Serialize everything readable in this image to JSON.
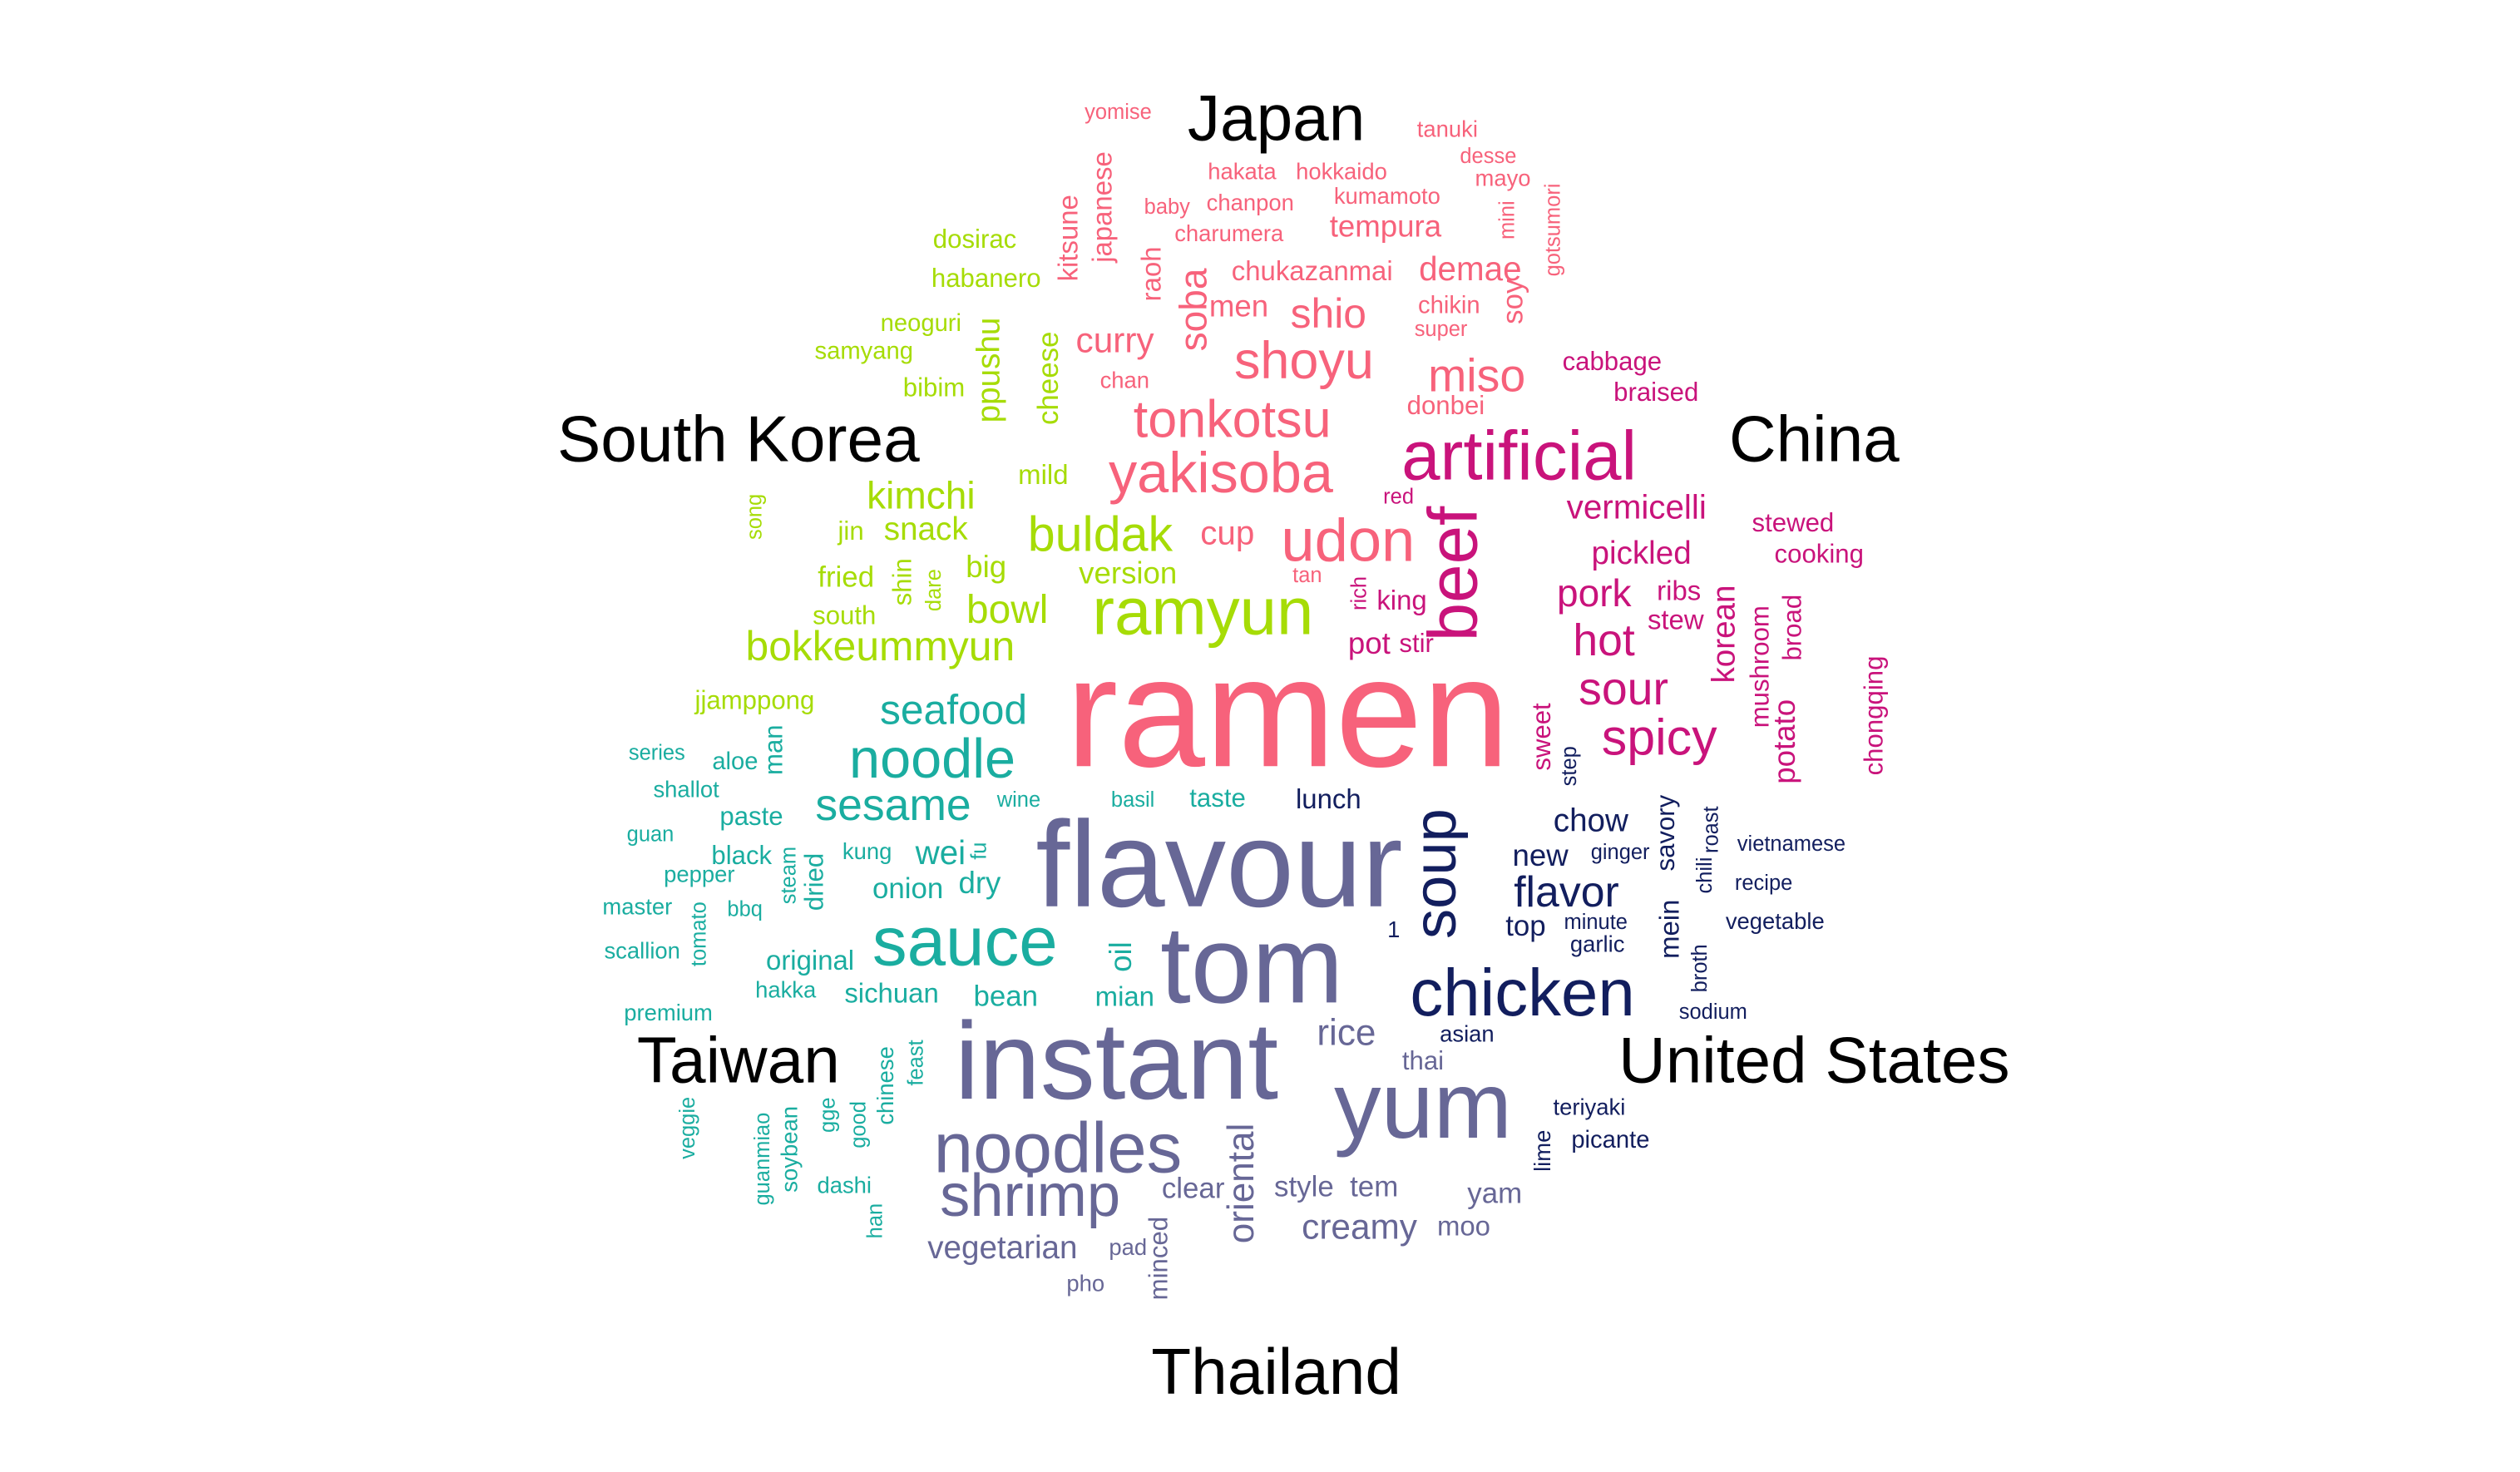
{
  "chart_data": {
    "type": "comparison-wordcloud",
    "title": "",
    "colors": {
      "Japan": "#f7627b",
      "China": "#c9137b",
      "South Korea": "#a6dc06",
      "Taiwan": "#1aada0",
      "Thailand": "#676796",
      "United States": "#121e5e",
      "label": "#000000"
    },
    "groups": [
      "Japan",
      "China",
      "United States",
      "Thailand",
      "Taiwan",
      "South Korea"
    ],
    "words": [
      {
        "text": "ramen",
        "group": "Japan",
        "weight": 100
      },
      {
        "text": "artificial",
        "group": "China",
        "weight": 44
      },
      {
        "text": "yakisoba",
        "group": "Japan",
        "weight": 36
      },
      {
        "text": "tonkotsu",
        "group": "Japan",
        "weight": 33
      },
      {
        "text": "udon",
        "group": "Japan",
        "weight": 38
      },
      {
        "text": "shoyu",
        "group": "Japan",
        "weight": 33
      },
      {
        "text": "miso",
        "group": "Japan",
        "weight": 29
      },
      {
        "text": "curry",
        "group": "Japan",
        "weight": 22
      },
      {
        "text": "shio",
        "group": "Japan",
        "weight": 26
      },
      {
        "text": "soba",
        "group": "Japan",
        "weight": 24
      },
      {
        "text": "tempura",
        "group": "Japan",
        "weight": 19
      },
      {
        "text": "demae",
        "group": "Japan",
        "weight": 21
      },
      {
        "text": "chukazanmai",
        "group": "Japan",
        "weight": 17
      },
      {
        "text": "men",
        "group": "Japan",
        "weight": 19
      },
      {
        "text": "cup",
        "group": "Japan",
        "weight": 21
      },
      {
        "text": "chikin",
        "group": "Japan",
        "weight": 15
      },
      {
        "text": "soy",
        "group": "Japan",
        "weight": 18
      },
      {
        "text": "chan",
        "group": "Japan",
        "weight": 14
      },
      {
        "text": "donbei",
        "group": "Japan",
        "weight": 16
      },
      {
        "text": "super",
        "group": "Japan",
        "weight": 13
      },
      {
        "text": "raoh",
        "group": "Japan",
        "weight": 17
      },
      {
        "text": "kitsune",
        "group": "Japan",
        "weight": 17
      },
      {
        "text": "japanese",
        "group": "Japan",
        "weight": 17
      },
      {
        "text": "yomise",
        "group": "Japan",
        "weight": 13
      },
      {
        "text": "tanuki",
        "group": "Japan",
        "weight": 14
      },
      {
        "text": "desse",
        "group": "Japan",
        "weight": 13
      },
      {
        "text": "hakata",
        "group": "Japan",
        "weight": 14
      },
      {
        "text": "hokkaido",
        "group": "Japan",
        "weight": 14
      },
      {
        "text": "mayo",
        "group": "Japan",
        "weight": 14
      },
      {
        "text": "baby",
        "group": "Japan",
        "weight": 13
      },
      {
        "text": "chanpon",
        "group": "Japan",
        "weight": 14
      },
      {
        "text": "kumamoto",
        "group": "Japan",
        "weight": 14
      },
      {
        "text": "mini",
        "group": "Japan",
        "weight": 13
      },
      {
        "text": "gotsumori",
        "group": "Japan",
        "weight": 13
      },
      {
        "text": "charumera",
        "group": "Japan",
        "weight": 14
      },
      {
        "text": "red",
        "group": "China",
        "weight": 13
      },
      {
        "text": "tan",
        "group": "Japan",
        "weight": 13
      },
      {
        "text": "rich",
        "group": "China",
        "weight": 13
      },
      {
        "text": "beef",
        "group": "China",
        "weight": 44
      },
      {
        "text": "vermicelli",
        "group": "China",
        "weight": 21
      },
      {
        "text": "pickled",
        "group": "China",
        "weight": 20
      },
      {
        "text": "pork",
        "group": "China",
        "weight": 24
      },
      {
        "text": "hot",
        "group": "China",
        "weight": 28
      },
      {
        "text": "sour",
        "group": "China",
        "weight": 29
      },
      {
        "text": "spicy",
        "group": "China",
        "weight": 32
      },
      {
        "text": "ribs",
        "group": "China",
        "weight": 17
      },
      {
        "text": "stew",
        "group": "China",
        "weight": 17
      },
      {
        "text": "korean",
        "group": "China",
        "weight": 20
      },
      {
        "text": "mushroom",
        "group": "China",
        "weight": 16
      },
      {
        "text": "potato",
        "group": "China",
        "weight": 19
      },
      {
        "text": "broad",
        "group": "China",
        "weight": 16
      },
      {
        "text": "chongqing",
        "group": "China",
        "weight": 16
      },
      {
        "text": "stewed",
        "group": "China",
        "weight": 16
      },
      {
        "text": "cooking",
        "group": "China",
        "weight": 16
      },
      {
        "text": "cabbage",
        "group": "China",
        "weight": 16
      },
      {
        "text": "braised",
        "group": "China",
        "weight": 16
      },
      {
        "text": "sweet",
        "group": "China",
        "weight": 16
      },
      {
        "text": "king",
        "group": "China",
        "weight": 17
      },
      {
        "text": "pot",
        "group": "China",
        "weight": 19
      },
      {
        "text": "stir",
        "group": "China",
        "weight": 16
      },
      {
        "text": "ramyun",
        "group": "South Korea",
        "weight": 42
      },
      {
        "text": "buldak",
        "group": "South Korea",
        "weight": 31
      },
      {
        "text": "kimchi",
        "group": "South Korea",
        "weight": 24
      },
      {
        "text": "snack",
        "group": "South Korea",
        "weight": 20
      },
      {
        "text": "bowl",
        "group": "South Korea",
        "weight": 25
      },
      {
        "text": "bokkeummyun",
        "group": "South Korea",
        "weight": 26
      },
      {
        "text": "version",
        "group": "South Korea",
        "weight": 19
      },
      {
        "text": "big",
        "group": "South Korea",
        "weight": 19
      },
      {
        "text": "mild",
        "group": "South Korea",
        "weight": 17
      },
      {
        "text": "fried",
        "group": "South Korea",
        "weight": 18
      },
      {
        "text": "jin",
        "group": "South Korea",
        "weight": 16
      },
      {
        "text": "south",
        "group": "South Korea",
        "weight": 16
      },
      {
        "text": "shin",
        "group": "South Korea",
        "weight": 16
      },
      {
        "text": "dare",
        "group": "South Korea",
        "weight": 13
      },
      {
        "text": "song",
        "group": "South Korea",
        "weight": 13
      },
      {
        "text": "cheese",
        "group": "South Korea",
        "weight": 18
      },
      {
        "text": "ppushu",
        "group": "South Korea",
        "weight": 20
      },
      {
        "text": "bibim",
        "group": "South Korea",
        "weight": 16
      },
      {
        "text": "samyang",
        "group": "South Korea",
        "weight": 15
      },
      {
        "text": "neoguri",
        "group": "South Korea",
        "weight": 15
      },
      {
        "text": "habanero",
        "group": "South Korea",
        "weight": 16
      },
      {
        "text": "dosirac",
        "group": "South Korea",
        "weight": 16
      },
      {
        "text": "jjamppong",
        "group": "South Korea",
        "weight": 16
      },
      {
        "text": "seafood",
        "group": "Taiwan",
        "weight": 26
      },
      {
        "text": "noodle",
        "group": "Taiwan",
        "weight": 35
      },
      {
        "text": "sesame",
        "group": "Taiwan",
        "weight": 28
      },
      {
        "text": "sauce",
        "group": "Taiwan",
        "weight": 44
      },
      {
        "text": "wei",
        "group": "Taiwan",
        "weight": 21
      },
      {
        "text": "fu",
        "group": "Taiwan",
        "weight": 13
      },
      {
        "text": "dry",
        "group": "Taiwan",
        "weight": 19
      },
      {
        "text": "onion",
        "group": "Taiwan",
        "weight": 18
      },
      {
        "text": "kung",
        "group": "Taiwan",
        "weight": 14
      },
      {
        "text": "dried",
        "group": "Taiwan",
        "weight": 16
      },
      {
        "text": "steam",
        "group": "Taiwan",
        "weight": 13
      },
      {
        "text": "black",
        "group": "Taiwan",
        "weight": 16
      },
      {
        "text": "paste",
        "group": "Taiwan",
        "weight": 16
      },
      {
        "text": "wine",
        "group": "Taiwan",
        "weight": 13
      },
      {
        "text": "aloe",
        "group": "Taiwan",
        "weight": 15
      },
      {
        "text": "man",
        "group": "Taiwan",
        "weight": 16
      },
      {
        "text": "series",
        "group": "Taiwan",
        "weight": 13
      },
      {
        "text": "shallot",
        "group": "Taiwan",
        "weight": 14
      },
      {
        "text": "guan",
        "group": "Taiwan",
        "weight": 13
      },
      {
        "text": "pepper",
        "group": "Taiwan",
        "weight": 14
      },
      {
        "text": "master",
        "group": "Taiwan",
        "weight": 14
      },
      {
        "text": "bbq",
        "group": "Taiwan",
        "weight": 13
      },
      {
        "text": "tomato",
        "group": "Taiwan",
        "weight": 13
      },
      {
        "text": "scallion",
        "group": "Taiwan",
        "weight": 14
      },
      {
        "text": "premium",
        "group": "Taiwan",
        "weight": 14
      },
      {
        "text": "original",
        "group": "Taiwan",
        "weight": 17
      },
      {
        "text": "oil",
        "group": "Taiwan",
        "weight": 19
      },
      {
        "text": "hakka",
        "group": "Taiwan",
        "weight": 14
      },
      {
        "text": "sichuan",
        "group": "Taiwan",
        "weight": 17
      },
      {
        "text": "bean",
        "group": "Taiwan",
        "weight": 18
      },
      {
        "text": "mian",
        "group": "Taiwan",
        "weight": 17
      },
      {
        "text": "chinese",
        "group": "Taiwan",
        "weight": 14
      },
      {
        "text": "feast",
        "group": "Taiwan",
        "weight": 13
      },
      {
        "text": "veggie",
        "group": "Taiwan",
        "weight": 13
      },
      {
        "text": "guanmiao",
        "group": "Taiwan",
        "weight": 13
      },
      {
        "text": "soybean",
        "group": "Taiwan",
        "weight": 14
      },
      {
        "text": "gge",
        "group": "Taiwan",
        "weight": 13
      },
      {
        "text": "good",
        "group": "Taiwan",
        "weight": 13
      },
      {
        "text": "dashi",
        "group": "Taiwan",
        "weight": 14
      },
      {
        "text": "han",
        "group": "Taiwan",
        "weight": 13
      },
      {
        "text": "flavour",
        "group": "Thailand",
        "weight": 78
      },
      {
        "text": "tom",
        "group": "Thailand",
        "weight": 70
      },
      {
        "text": "instant",
        "group": "Thailand",
        "weight": 70
      },
      {
        "text": "yum",
        "group": "Thailand",
        "weight": 60
      },
      {
        "text": "noodles",
        "group": "Thailand",
        "weight": 45
      },
      {
        "text": "shrimp",
        "group": "Thailand",
        "weight": 38
      },
      {
        "text": "rice",
        "group": "Thailand",
        "weight": 23
      },
      {
        "text": "thai",
        "group": "Thailand",
        "weight": 16
      },
      {
        "text": "oriental",
        "group": "Thailand",
        "weight": 23
      },
      {
        "text": "clear",
        "group": "Thailand",
        "weight": 18
      },
      {
        "text": "style",
        "group": "Thailand",
        "weight": 18
      },
      {
        "text": "tem",
        "group": "Thailand",
        "weight": 18
      },
      {
        "text": "creamy",
        "group": "Thailand",
        "weight": 22
      },
      {
        "text": "moo",
        "group": "Thailand",
        "weight": 17
      },
      {
        "text": "yam",
        "group": "Thailand",
        "weight": 18
      },
      {
        "text": "vegetarian",
        "group": "Thailand",
        "weight": 20
      },
      {
        "text": "pad",
        "group": "Thailand",
        "weight": 14
      },
      {
        "text": "minced",
        "group": "Thailand",
        "weight": 16
      },
      {
        "text": "phо",
        "group": "Thailand",
        "weight": 14
      },
      {
        "text": "taste",
        "group": "Taiwan",
        "weight": 16
      },
      {
        "text": "basil",
        "group": "Taiwan",
        "weight": 13
      },
      {
        "text": "soup",
        "group": "United States",
        "weight": 38
      },
      {
        "text": "chicken",
        "group": "United States",
        "weight": 42
      },
      {
        "text": "flavor",
        "group": "United States",
        "weight": 27
      },
      {
        "text": "chow",
        "group": "United States",
        "weight": 20
      },
      {
        "text": "new",
        "group": "United States",
        "weight": 19
      },
      {
        "text": "top",
        "group": "United States",
        "weight": 18
      },
      {
        "text": "mein",
        "group": "United States",
        "weight": 17
      },
      {
        "text": "savory",
        "group": "United States",
        "weight": 16
      },
      {
        "text": "lunch",
        "group": "United States",
        "weight": 17
      },
      {
        "text": "ginger",
        "group": "United States",
        "weight": 13
      },
      {
        "text": "minute",
        "group": "United States",
        "weight": 13
      },
      {
        "text": "garlic",
        "group": "United States",
        "weight": 14
      },
      {
        "text": "step",
        "group": "United States",
        "weight": 13
      },
      {
        "text": "chili",
        "group": "United States",
        "weight": 13
      },
      {
        "text": "roast",
        "group": "United States",
        "weight": 13
      },
      {
        "text": "vietnamese",
        "group": "United States",
        "weight": 13
      },
      {
        "text": "recipe",
        "group": "United States",
        "weight": 13
      },
      {
        "text": "vegetable",
        "group": "United States",
        "weight": 14
      },
      {
        "text": "broth",
        "group": "United States",
        "weight": 13
      },
      {
        "text": "sodium",
        "group": "United States",
        "weight": 13
      },
      {
        "text": "asian",
        "group": "United States",
        "weight": 14
      },
      {
        "text": "teriyaki",
        "group": "United States",
        "weight": 14
      },
      {
        "text": "picante",
        "group": "United States",
        "weight": 15
      },
      {
        "text": "lime",
        "group": "United States",
        "weight": 14
      },
      {
        "text": "1",
        "group": "United States",
        "weight": 14
      }
    ]
  }
}
